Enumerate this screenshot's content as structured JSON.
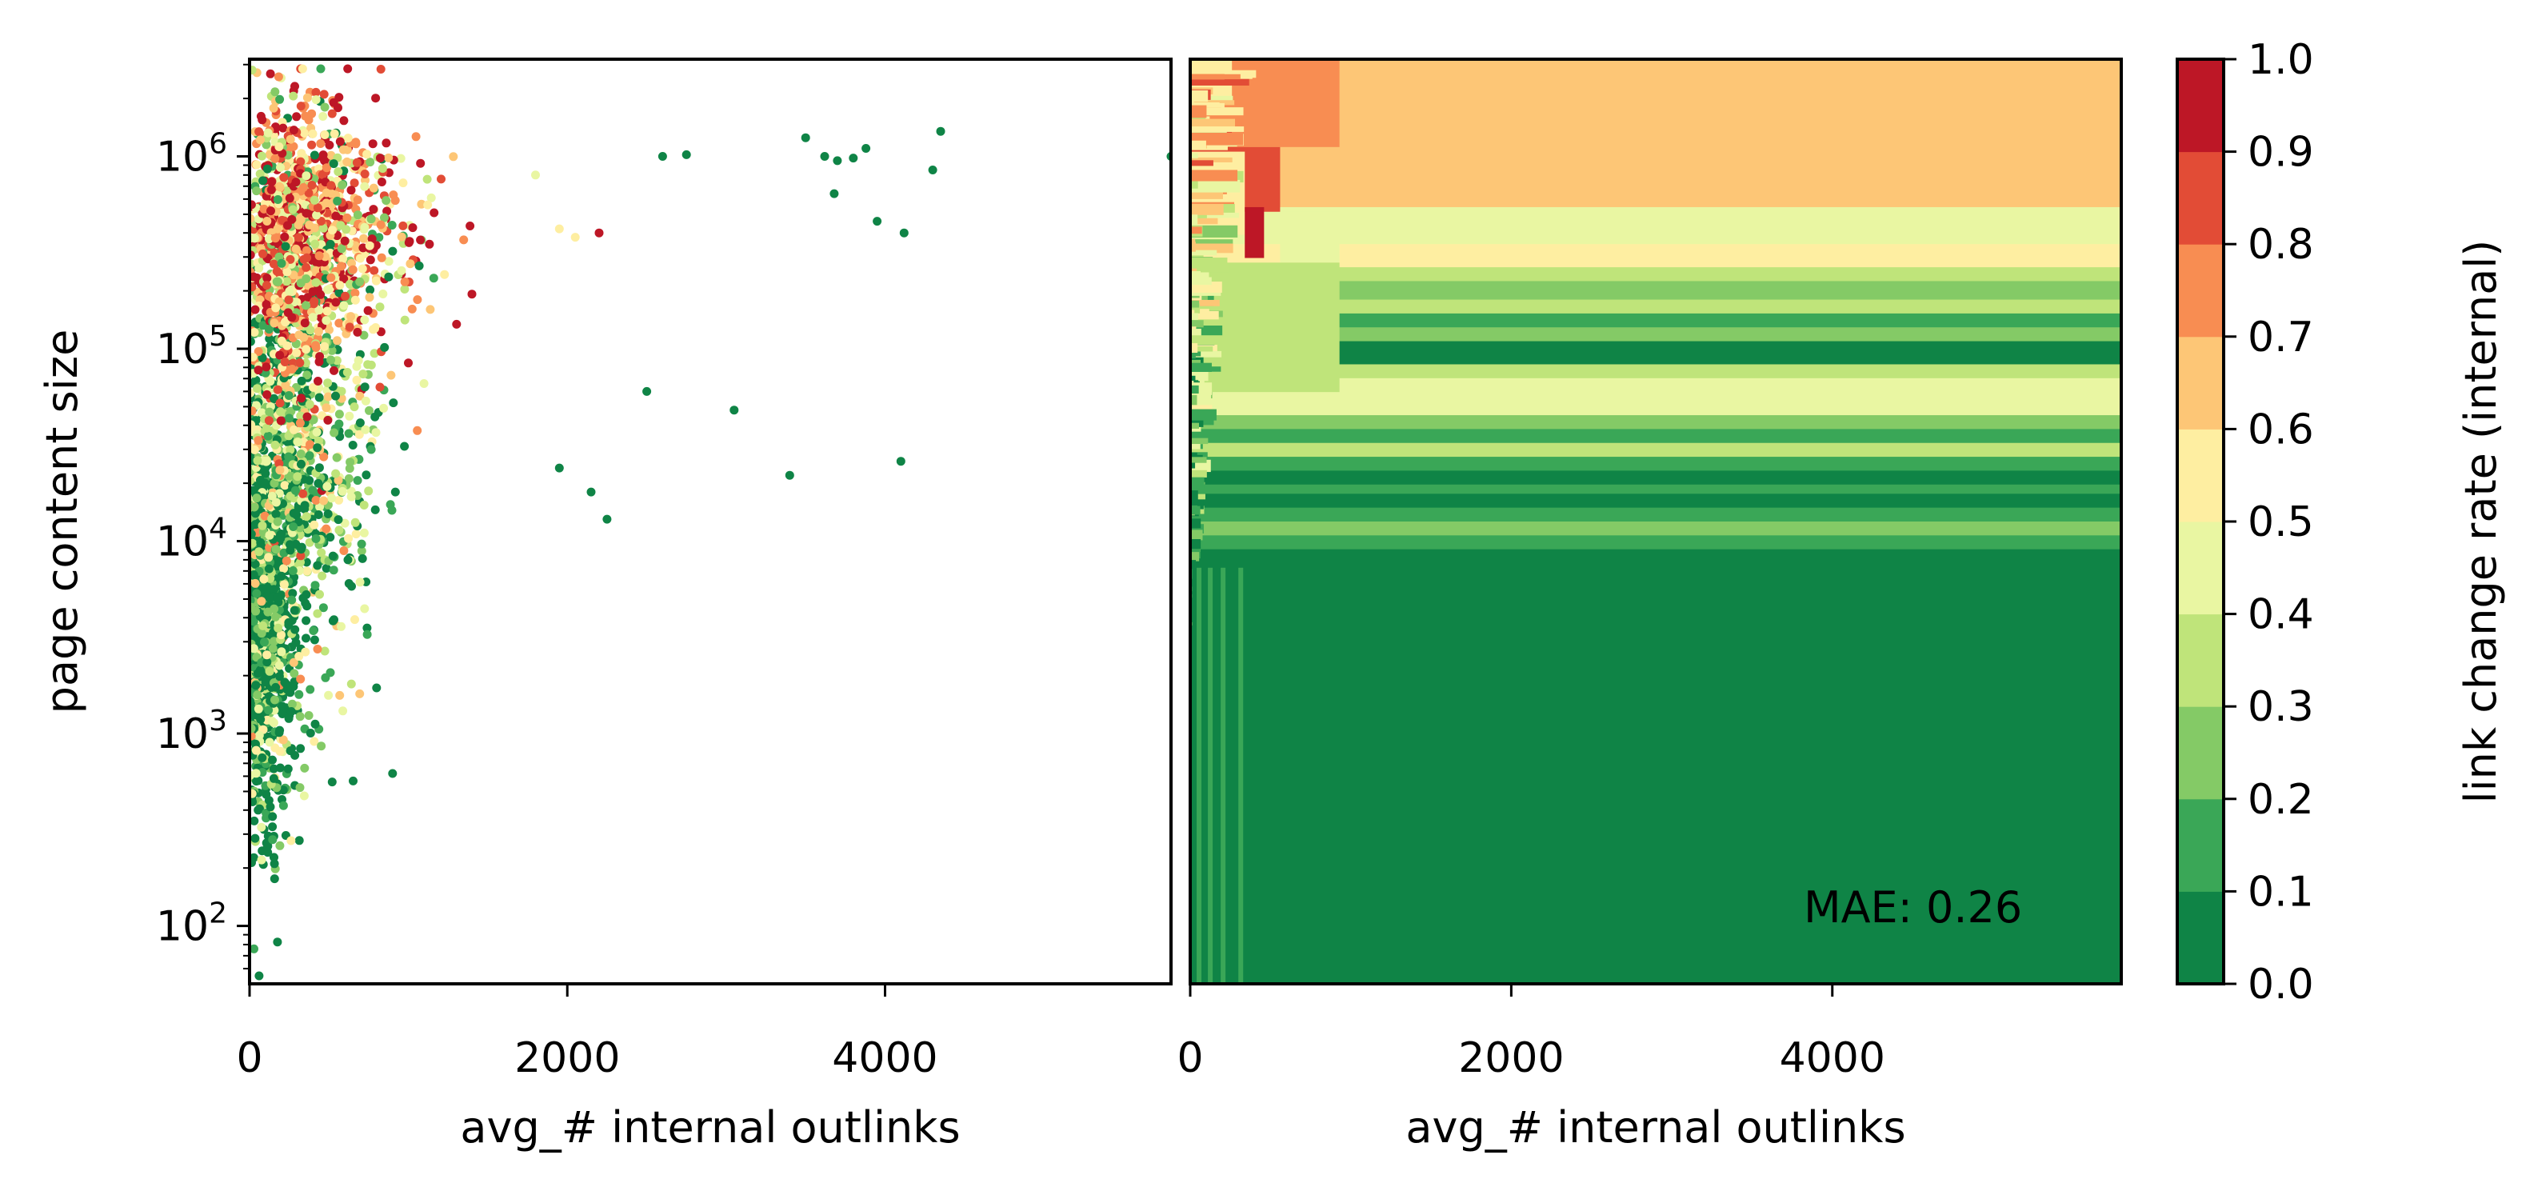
{
  "chart_data": [
    {
      "type": "scatter",
      "xlabel": "avg_# internal outlinks",
      "ylabel": "page content size",
      "xlim": [
        0,
        5800
      ],
      "ylim": [
        50,
        3200000
      ],
      "yscale": "log",
      "xticks": [
        0,
        2000,
        4000
      ],
      "xtick_labels": [
        "0",
        "2000",
        "4000"
      ],
      "yticks": [
        100,
        1000,
        10000,
        100000,
        1000000
      ],
      "ytick_labels": [
        {
          "base": "10",
          "exp": "2"
        },
        {
          "base": "10",
          "exp": "3"
        },
        {
          "base": "10",
          "exp": "4"
        },
        {
          "base": "10",
          "exp": "5"
        },
        {
          "base": "10",
          "exp": "6"
        }
      ],
      "color_encoding": "link change rate (internal)",
      "clusters": [
        {
          "x_center": 120,
          "x_spread": 160,
          "logy_center": 3.6,
          "logy_spread": 0.55,
          "count": 900,
          "rate_bias": 0.05
        },
        {
          "x_center": 350,
          "x_spread": 320,
          "logy_center": 4.5,
          "logy_spread": 0.6,
          "count": 900,
          "rate_bias": 0.25
        },
        {
          "x_center": 450,
          "x_spread": 380,
          "logy_center": 5.6,
          "logy_spread": 0.35,
          "count": 1100,
          "rate_bias": 0.7
        }
      ],
      "outliers": [
        {
          "x": 2600,
          "y": 1000000,
          "rate": 0.0
        },
        {
          "x": 2750,
          "y": 1020000,
          "rate": 0.0
        },
        {
          "x": 3500,
          "y": 1250000,
          "rate": 0.0
        },
        {
          "x": 3620,
          "y": 1000000,
          "rate": 0.0
        },
        {
          "x": 3700,
          "y": 950000,
          "rate": 0.0
        },
        {
          "x": 3800,
          "y": 980000,
          "rate": 0.0
        },
        {
          "x": 3880,
          "y": 1100000,
          "rate": 0.0
        },
        {
          "x": 4300,
          "y": 850000,
          "rate": 0.0
        },
        {
          "x": 4350,
          "y": 1350000,
          "rate": 0.0
        },
        {
          "x": 3680,
          "y": 640000,
          "rate": 0.0
        },
        {
          "x": 3950,
          "y": 460000,
          "rate": 0.0
        },
        {
          "x": 4120,
          "y": 400000,
          "rate": 0.0
        },
        {
          "x": 5800,
          "y": 1000000,
          "rate": 0.0
        },
        {
          "x": 2500,
          "y": 60000,
          "rate": 0.0
        },
        {
          "x": 3050,
          "y": 48000,
          "rate": 0.0
        },
        {
          "x": 3400,
          "y": 22000,
          "rate": 0.0
        },
        {
          "x": 4100,
          "y": 26000,
          "rate": 0.0
        },
        {
          "x": 1950,
          "y": 420000,
          "rate": 0.55
        },
        {
          "x": 2050,
          "y": 380000,
          "rate": 0.5
        },
        {
          "x": 2200,
          "y": 400000,
          "rate": 0.9
        },
        {
          "x": 1800,
          "y": 800000,
          "rate": 0.45
        },
        {
          "x": 1950,
          "y": 24000,
          "rate": 0.0
        },
        {
          "x": 2150,
          "y": 18000,
          "rate": 0.0
        },
        {
          "x": 2250,
          "y": 13000,
          "rate": 0.0
        },
        {
          "x": 900,
          "y": 620,
          "rate": 0.0
        },
        {
          "x": 520,
          "y": 560,
          "rate": 0.0
        },
        {
          "x": 60,
          "y": 55,
          "rate": 0.0
        }
      ]
    },
    {
      "type": "heatmap",
      "xlabel": "avg_# internal outlinks",
      "xlim": [
        0,
        5800
      ],
      "xticks": [
        0,
        2000,
        4000
      ],
      "xtick_labels": [
        "0",
        "2000",
        "4000"
      ],
      "ylim": [
        50,
        3200000
      ],
      "yscale": "log",
      "annotation": "MAE: 0.26",
      "bands": [
        {
          "y_from": 0.0,
          "y_to": 0.16,
          "rate": 0.65
        },
        {
          "y_from": 0.16,
          "y_to": 0.2,
          "rate": 0.45
        },
        {
          "y_from": 0.2,
          "y_to": 0.225,
          "rate": 0.55
        },
        {
          "y_from": 0.225,
          "y_to": 0.24,
          "rate": 0.35
        },
        {
          "y_from": 0.24,
          "y_to": 0.26,
          "rate": 0.25
        },
        {
          "y_from": 0.26,
          "y_to": 0.275,
          "rate": 0.35
        },
        {
          "y_from": 0.275,
          "y_to": 0.29,
          "rate": 0.15
        },
        {
          "y_from": 0.29,
          "y_to": 0.305,
          "rate": 0.25
        },
        {
          "y_from": 0.305,
          "y_to": 0.33,
          "rate": 0.05
        },
        {
          "y_from": 0.33,
          "y_to": 0.345,
          "rate": 0.35
        },
        {
          "y_from": 0.345,
          "y_to": 0.36,
          "rate": 0.45
        },
        {
          "y_from": 0.36,
          "y_to": 0.385,
          "rate": 0.4
        },
        {
          "y_from": 0.385,
          "y_to": 0.4,
          "rate": 0.25
        },
        {
          "y_from": 0.4,
          "y_to": 0.415,
          "rate": 0.15
        },
        {
          "y_from": 0.415,
          "y_to": 0.43,
          "rate": 0.3
        },
        {
          "y_from": 0.43,
          "y_to": 0.445,
          "rate": 0.15
        },
        {
          "y_from": 0.445,
          "y_to": 0.46,
          "rate": 0.05
        },
        {
          "y_from": 0.46,
          "y_to": 0.47,
          "rate": 0.15
        },
        {
          "y_from": 0.47,
          "y_to": 0.485,
          "rate": 0.05
        },
        {
          "y_from": 0.485,
          "y_to": 0.5,
          "rate": 0.15
        },
        {
          "y_from": 0.5,
          "y_to": 0.515,
          "rate": 0.25
        },
        {
          "y_from": 0.515,
          "y_to": 0.53,
          "rate": 0.15
        },
        {
          "y_from": 0.53,
          "y_to": 1.0,
          "rate": 0.05
        }
      ],
      "left_overrides": [
        {
          "x_from": 0,
          "x_to": 930,
          "y_from": 0.0,
          "y_to": 0.095,
          "rate": 0.75
        },
        {
          "x_from": 0,
          "x_to": 560,
          "y_from": 0.095,
          "y_to": 0.165,
          "rate": 0.85
        },
        {
          "x_from": 560,
          "x_to": 930,
          "y_from": 0.165,
          "y_to": 0.22,
          "rate": 0.45
        },
        {
          "x_from": 0,
          "x_to": 930,
          "y_from": 0.22,
          "y_to": 0.36,
          "rate": 0.35
        },
        {
          "x_from": 0,
          "x_to": 260,
          "y_from": 0.0,
          "y_to": 0.05,
          "rate": 0.55
        },
        {
          "x_from": 0,
          "x_to": 340,
          "y_from": 0.1,
          "y_to": 0.19,
          "rate": 0.5
        },
        {
          "x_from": 340,
          "x_to": 460,
          "y_from": 0.16,
          "y_to": 0.215,
          "rate": 0.95
        }
      ]
    }
  ],
  "colorbar": {
    "label": "link change rate (internal)",
    "ticks": [
      "0.0",
      "0.1",
      "0.2",
      "0.3",
      "0.4",
      "0.5",
      "0.6",
      "0.7",
      "0.8",
      "0.9",
      "1.0"
    ],
    "colors": [
      "#0f8446",
      "#3aa757",
      "#84ca66",
      "#bfe47a",
      "#e9f6a2",
      "#feeea1",
      "#fdc676",
      "#f88d52",
      "#e24c36",
      "#bd1726"
    ]
  }
}
